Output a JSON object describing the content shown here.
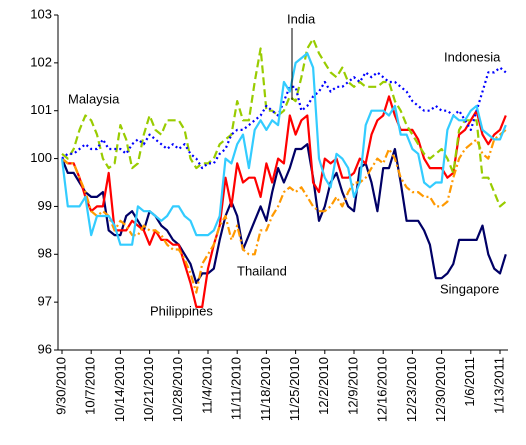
{
  "chart_data": {
    "type": "line",
    "categories": [
      "9/30/2010",
      null,
      null,
      null,
      null,
      "10/7/2010",
      null,
      null,
      null,
      null,
      "10/14/2010",
      null,
      null,
      null,
      null,
      "10/21/2010",
      null,
      null,
      null,
      null,
      "10/28/2010",
      null,
      null,
      null,
      null,
      "11/4/2010",
      null,
      null,
      null,
      null,
      "11/11/2010",
      null,
      null,
      null,
      null,
      "11/18/2010",
      null,
      null,
      null,
      null,
      "11/25/2010",
      null,
      null,
      null,
      null,
      "12/2/2010",
      null,
      null,
      null,
      null,
      "12/9/2010",
      null,
      null,
      null,
      null,
      "12/16/2010",
      null,
      null,
      null,
      null,
      "12/23/2010",
      null,
      null,
      null,
      null,
      "12/30/2010",
      null,
      null,
      null,
      null,
      "1/6/2011",
      null,
      null,
      null,
      null,
      "1/13/2011",
      null
    ],
    "ylim": [
      96,
      103
    ],
    "yticks": [
      96,
      97,
      98,
      99,
      100,
      101,
      102,
      103
    ],
    "grid": false,
    "series": [
      {
        "name": "Singapore",
        "color": "#000066",
        "dash": "solid",
        "values": [
          100.0,
          99.7,
          99.7,
          99.5,
          99.3,
          99.2,
          99.2,
          99.3,
          98.5,
          98.4,
          98.4,
          98.8,
          98.9,
          98.7,
          98.5,
          98.9,
          98.8,
          98.6,
          98.5,
          98.3,
          98.2,
          98.0,
          97.8,
          97.4,
          97.6,
          97.6,
          97.7,
          98.3,
          98.8,
          99.1,
          98.8,
          98.1,
          98.4,
          98.7,
          99.0,
          98.7,
          99.3,
          99.8,
          99.5,
          99.8,
          100.2,
          100.2,
          100.3,
          99.6,
          98.7,
          99.0,
          99.5,
          99.7,
          99.3,
          99.0,
          98.9,
          99.8,
          99.9,
          99.5,
          98.9,
          99.8,
          99.8,
          100.2,
          99.5,
          98.7,
          98.7,
          98.7,
          98.5,
          98.2,
          97.5,
          97.5,
          97.6,
          97.8,
          98.3,
          98.3,
          98.3,
          98.3,
          98.6,
          98.0,
          97.7,
          97.6,
          98.0
        ]
      },
      {
        "name": "Philippines",
        "color": "#ff0000",
        "dash": "solid",
        "values": [
          100.0,
          99.9,
          99.9,
          99.6,
          99.2,
          98.9,
          99.0,
          99.0,
          99.7,
          98.5,
          98.5,
          98.5,
          98.7,
          98.6,
          98.5,
          98.2,
          98.5,
          98.3,
          98.3,
          98.2,
          98.2,
          97.8,
          97.4,
          96.9,
          96.9,
          97.7,
          98.2,
          98.6,
          99.6,
          99.0,
          99.9,
          99.5,
          99.6,
          99.6,
          99.2,
          99.9,
          99.5,
          100.0,
          99.9,
          100.9,
          100.5,
          100.8,
          100.9,
          99.5,
          99.3,
          100.0,
          99.9,
          100.0,
          99.6,
          99.6,
          99.7,
          100.0,
          99.9,
          100.5,
          100.8,
          100.9,
          101.3,
          100.9,
          100.6,
          100.6,
          100.6,
          100.4,
          100.0,
          99.8,
          99.8,
          99.8,
          99.6,
          99.7,
          100.5,
          100.6,
          100.8,
          101.0,
          100.5,
          100.3,
          100.5,
          100.6,
          100.9
        ]
      },
      {
        "name": "Thailand",
        "color": "#ff9900",
        "dash": "dashdot",
        "values": [
          100.0,
          99.9,
          99.9,
          99.6,
          99.3,
          98.9,
          98.8,
          98.9,
          98.8,
          98.5,
          98.7,
          98.6,
          98.4,
          98.4,
          98.6,
          98.5,
          98.5,
          98.4,
          98.2,
          98.1,
          98.1,
          97.9,
          97.6,
          97.2,
          97.8,
          98.0,
          98.2,
          98.6,
          98.8,
          98.3,
          98.6,
          98.1,
          98.0,
          98.0,
          98.5,
          98.5,
          98.8,
          99.0,
          99.3,
          99.4,
          99.3,
          99.4,
          99.2,
          99.0,
          98.9,
          98.9,
          99.0,
          99.2,
          99.0,
          99.3,
          99.5,
          99.5,
          99.6,
          99.8,
          100.0,
          99.9,
          100.2,
          100.0,
          99.6,
          99.4,
          99.3,
          99.3,
          99.2,
          99.2,
          99.0,
          99.0,
          99.1,
          99.6,
          100.0,
          100.2,
          100.3,
          100.4,
          100.1,
          100.0,
          100.4,
          100.5,
          100.6
        ]
      },
      {
        "name": "Malaysia",
        "color": "#99cc00",
        "dash": "dash",
        "values": [
          100.1,
          100.0,
          100.2,
          100.6,
          100.9,
          100.8,
          100.5,
          100.0,
          99.8,
          99.9,
          100.7,
          100.4,
          99.8,
          99.9,
          100.5,
          100.9,
          100.6,
          100.5,
          100.8,
          100.8,
          100.8,
          100.6,
          100.0,
          99.8,
          99.9,
          99.9,
          100.0,
          100.3,
          100.4,
          100.5,
          101.2,
          100.8,
          100.8,
          101.6,
          102.3,
          101.0,
          101.0,
          100.9,
          101.0,
          101.3,
          101.2,
          101.7,
          102.3,
          102.5,
          102.2,
          102.0,
          101.8,
          101.7,
          101.9,
          101.6,
          101.5,
          101.6,
          101.5,
          101.5,
          101.5,
          101.6,
          101.6,
          101.2,
          101.0,
          100.7,
          100.5,
          100.3,
          100.1,
          100.0,
          100.1,
          100.2,
          100.0,
          99.7,
          100.6,
          100.8,
          100.8,
          100.8,
          99.6,
          99.6,
          99.3,
          99.0,
          99.1
        ]
      },
      {
        "name": "Indonesia",
        "color": "#0000ff",
        "dash": "dot",
        "values": [
          100.0,
          100.1,
          100.1,
          100.2,
          100.3,
          100.2,
          100.2,
          100.4,
          100.2,
          100.2,
          100.2,
          100.1,
          100.3,
          100.4,
          100.3,
          100.5,
          100.4,
          100.3,
          100.2,
          100.3,
          100.2,
          100.3,
          100.1,
          100.0,
          99.8,
          99.9,
          99.9,
          100.1,
          100.2,
          100.5,
          100.6,
          100.6,
          100.7,
          100.8,
          100.9,
          101.1,
          101.0,
          100.9,
          101.2,
          101.5,
          101.5,
          101.0,
          101.1,
          101.3,
          101.4,
          101.6,
          101.4,
          101.5,
          101.5,
          101.6,
          101.7,
          101.6,
          101.8,
          101.7,
          101.8,
          101.7,
          101.6,
          101.6,
          101.5,
          101.4,
          101.2,
          101.1,
          101.0,
          101.0,
          101.1,
          101.0,
          101.0,
          100.9,
          101.0,
          100.8,
          100.6,
          101.0,
          101.4,
          101.8,
          101.8,
          101.9,
          101.8
        ]
      },
      {
        "name": "India",
        "color": "#33ccff",
        "dash": "solid",
        "values": [
          100.0,
          99.0,
          99.0,
          99.0,
          99.2,
          98.4,
          98.8,
          98.8,
          98.8,
          98.6,
          98.2,
          98.2,
          98.2,
          99.0,
          98.9,
          98.9,
          98.8,
          98.7,
          98.8,
          99.0,
          99.0,
          98.8,
          98.7,
          98.4,
          98.4,
          98.4,
          98.5,
          98.8,
          100.0,
          99.9,
          100.3,
          100.5,
          99.8,
          100.6,
          100.8,
          100.6,
          100.8,
          100.7,
          101.6,
          101.4,
          102.0,
          102.1,
          102.2,
          101.9,
          100.0,
          99.6,
          99.4,
          100.1,
          100.0,
          99.8,
          99.2,
          99.5,
          100.7,
          101.0,
          101.0,
          101.0,
          100.9,
          101.1,
          100.5,
          100.5,
          100.2,
          100.1,
          99.5,
          99.4,
          99.5,
          99.5,
          100.6,
          100.9,
          100.8,
          100.8,
          101.0,
          101.1,
          100.6,
          100.5,
          100.4,
          100.4,
          100.7
        ]
      }
    ]
  }
}
